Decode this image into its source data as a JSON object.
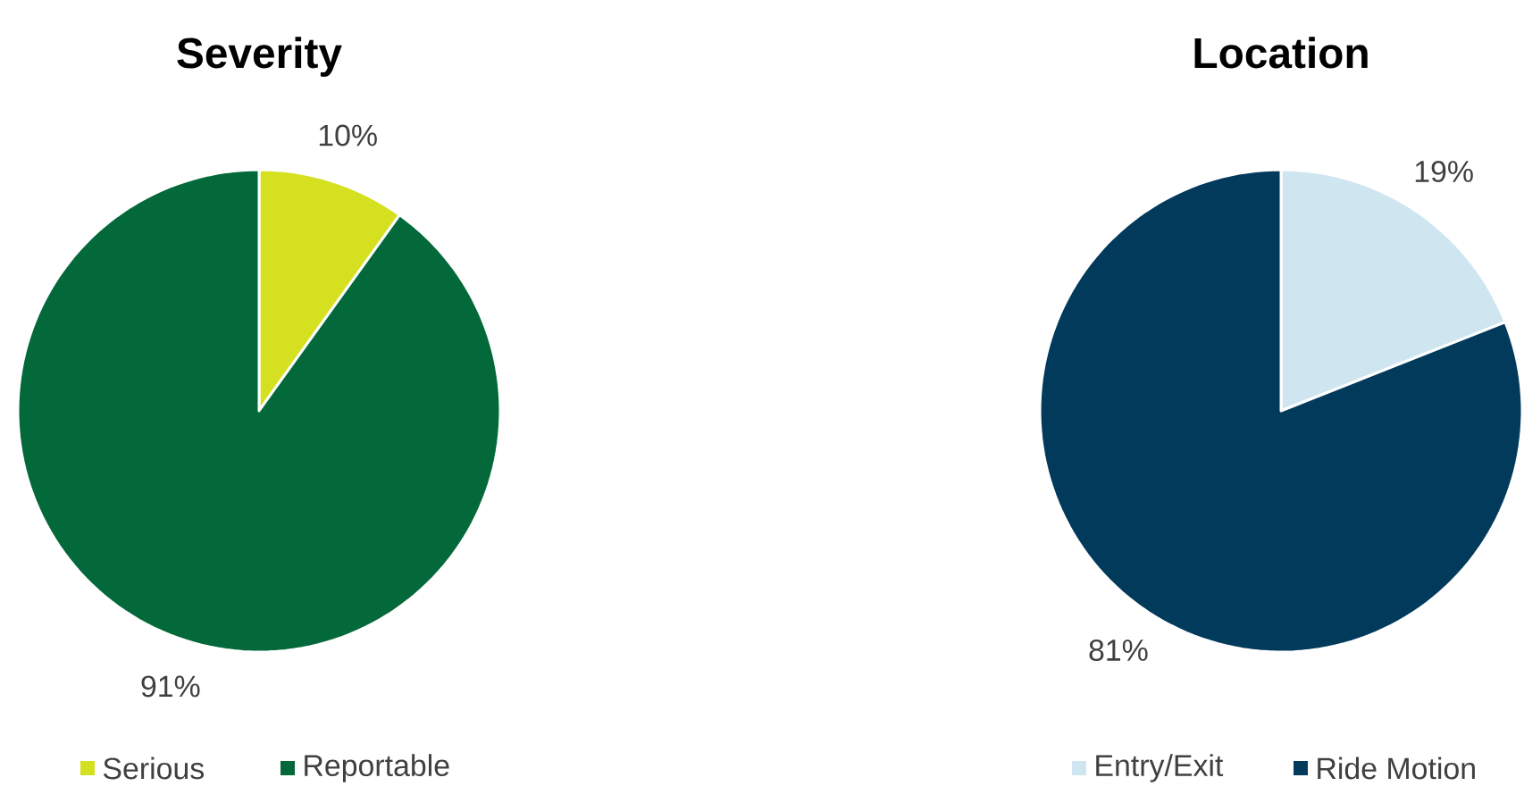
{
  "chart_data": [
    {
      "type": "pie",
      "title": "Severity",
      "categories": [
        "Serious",
        "Reportable"
      ],
      "values": [
        10,
        91
      ],
      "value_labels": [
        "10%",
        "91%"
      ],
      "colors": [
        "#d5e021",
        "#03693a"
      ],
      "legend": "bottom"
    },
    {
      "type": "pie",
      "title": "Location",
      "categories": [
        "Entry/Exit",
        "Ride Motion"
      ],
      "values": [
        19,
        81
      ],
      "value_labels": [
        "19%",
        "81%"
      ],
      "colors": [
        "#cfe6f1",
        "#023a5c"
      ],
      "legend": "bottom"
    }
  ]
}
